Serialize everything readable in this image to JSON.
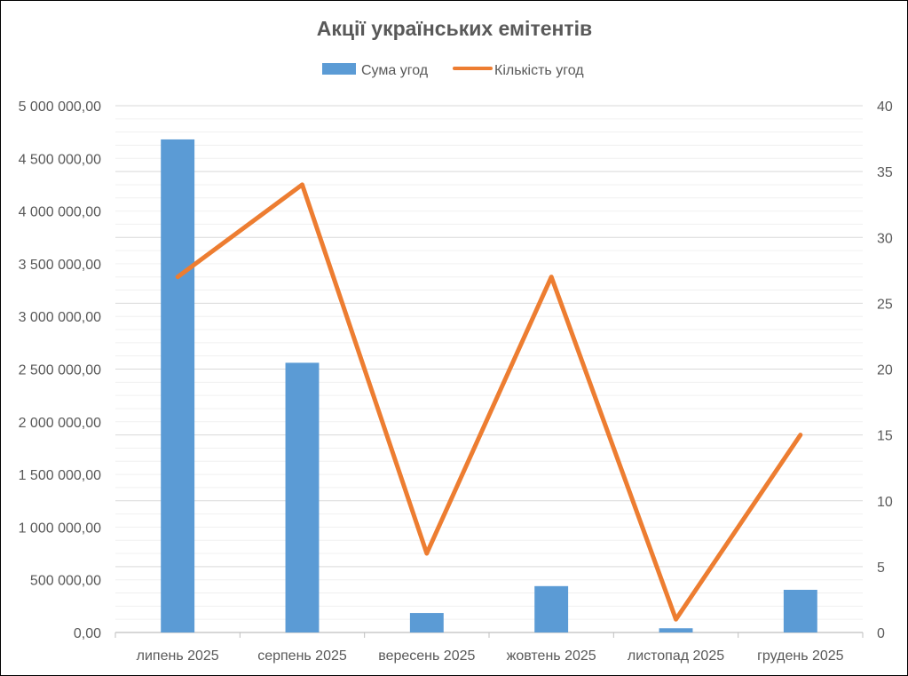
{
  "chart_data": {
    "type": "bar+line",
    "title": "Акції українських емітентів",
    "categories": [
      "липень 2025",
      "серпень 2025",
      "вересень 2025",
      "жовтень 2025",
      "листопад 2025",
      "грудень 2025"
    ],
    "series": [
      {
        "name": "Сума угод",
        "type": "bar",
        "axis": "left",
        "color": "#5B9BD5",
        "values": [
          4680000,
          2560000,
          185000,
          440000,
          40000,
          405000
        ]
      },
      {
        "name": "Кількість угод",
        "type": "line",
        "axis": "right",
        "color": "#ED7D31",
        "values": [
          27,
          34,
          6,
          27,
          1,
          15
        ]
      }
    ],
    "y_left": {
      "min": 0,
      "max": 5000000,
      "step": 500000,
      "tick_labels": [
        "0,00",
        "500 000,00",
        "1 000 000,00",
        "1 500 000,00",
        "2 000 000,00",
        "2 500 000,00",
        "3 000 000,00",
        "3 500 000,00",
        "4 000 000,00",
        "4 500 000,00",
        "5 000 000,00"
      ]
    },
    "y_right": {
      "min": 0,
      "max": 40,
      "step": 5,
      "tick_labels": [
        "0",
        "5",
        "10",
        "15",
        "20",
        "25",
        "30",
        "35",
        "40"
      ]
    },
    "minor_gridlines": 5,
    "grid": true,
    "legend_position": "top-center"
  }
}
